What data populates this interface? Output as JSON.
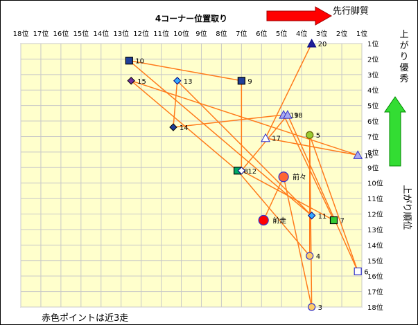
{
  "chart_data": {
    "type": "scatter",
    "title": "4コーナー位置取り",
    "annotations": {
      "pace_label": "先行脚質",
      "agari_label": "上がり優秀",
      "yaxis_label": "上がり順位",
      "footer": "赤色ポイントは近3走"
    },
    "x_axis": {
      "label": "4コーナー位置取り",
      "range": [
        18,
        1
      ],
      "ticks": [
        "18位",
        "17位",
        "16位",
        "15位",
        "14位",
        "13位",
        "12位",
        "11位",
        "10位",
        "9位",
        "8位",
        "7位",
        "6位",
        "5位",
        "4位",
        "3位",
        "2位",
        "1位"
      ]
    },
    "y_axis": {
      "label": "上がり順位",
      "range": [
        1,
        18
      ],
      "ticks": [
        "1位",
        "2位",
        "3位",
        "4位",
        "5位",
        "6位",
        "7位",
        "8位",
        "9位",
        "10位",
        "11位",
        "12位",
        "13位",
        "14位",
        "15位",
        "16位",
        "17位",
        "18位"
      ]
    },
    "grid": true,
    "points": [
      {
        "label": "20",
        "x": 3.5,
        "y": 1,
        "marker": "triangle",
        "fill": "#1f1f99",
        "stroke": "#000080"
      },
      {
        "label": "10",
        "x": 12.6,
        "y": 2.1,
        "marker": "square",
        "fill": "#1f3f99",
        "stroke": "#000000"
      },
      {
        "label": "15",
        "x": 12.5,
        "y": 3.4,
        "marker": "diamond",
        "fill": "#7030a0",
        "stroke": "#000000"
      },
      {
        "label": "13",
        "x": 10.2,
        "y": 3.4,
        "marker": "diamond",
        "fill": "#33aaff",
        "stroke": "#000080"
      },
      {
        "label": "9",
        "x": 7,
        "y": 3.4,
        "marker": "square",
        "fill": "#1f3f99",
        "stroke": "#000000"
      },
      {
        "label": "19",
        "x": 4.9,
        "y": 5.6,
        "marker": "triangle",
        "fill": "#aaaaee",
        "stroke": "#3333cc"
      },
      {
        "label": "18",
        "x": 4.7,
        "y": 5.6,
        "marker": "triangle",
        "fill": "#aaaaee",
        "stroke": "#3333cc"
      },
      {
        "label": "14",
        "x": 10.4,
        "y": 6.4,
        "marker": "diamond",
        "fill": "#1f3f99",
        "stroke": "#000000"
      },
      {
        "label": "5",
        "x": 3.6,
        "y": 6.9,
        "marker": "circle",
        "fill": "#99cc33",
        "stroke": "#666600"
      },
      {
        "label": "17",
        "x": 5.8,
        "y": 7.1,
        "marker": "triangle",
        "fill": "#ffffff",
        "stroke": "#3333cc"
      },
      {
        "label": "16",
        "x": 1.2,
        "y": 8.2,
        "marker": "triangle",
        "fill": "#aaaaee",
        "stroke": "#3333cc"
      },
      {
        "label": "8",
        "x": 7.2,
        "y": 9.2,
        "marker": "square",
        "fill": "#00aa66",
        "stroke": "#000000"
      },
      {
        "label": "12",
        "x": 7,
        "y": 9.2,
        "marker": "diamond",
        "fill": "#ffffff",
        "stroke": "#000080"
      },
      {
        "label": "前々",
        "x": 4.9,
        "y": 9.6,
        "marker": "circle",
        "fill": "#ff6633",
        "stroke": "#3333cc"
      },
      {
        "label": "11",
        "x": 3.5,
        "y": 12.1,
        "marker": "diamond",
        "fill": "#33aaff",
        "stroke": "#000080"
      },
      {
        "label": "7",
        "x": 2.4,
        "y": 12.4,
        "marker": "square",
        "fill": "#33cc33",
        "stroke": "#000000"
      },
      {
        "label": "前走",
        "x": 5.9,
        "y": 12.4,
        "marker": "circle",
        "fill": "#ff0000",
        "stroke": "#3333cc"
      },
      {
        "label": "4",
        "x": 3.6,
        "y": 14.7,
        "marker": "circle",
        "fill": "#ffcc66",
        "stroke": "#3333cc"
      },
      {
        "label": "6",
        "x": 1.2,
        "y": 15.7,
        "marker": "square",
        "fill": "#ffffff",
        "stroke": "#3333cc"
      },
      {
        "label": "3",
        "x": 3.5,
        "y": 18,
        "marker": "circle",
        "fill": "#ffcc66",
        "stroke": "#3333cc"
      }
    ],
    "connections": [
      [
        "20",
        "17"
      ],
      [
        "17",
        "16"
      ],
      [
        "16",
        "15"
      ],
      [
        "15",
        "8"
      ],
      [
        "8",
        "4"
      ],
      [
        "4",
        "5"
      ],
      [
        "5",
        "6"
      ],
      [
        "6",
        "18"
      ],
      [
        "18",
        "12"
      ],
      [
        "12",
        "9"
      ],
      [
        "9",
        "10"
      ],
      [
        "10",
        "11"
      ],
      [
        "11",
        "13"
      ],
      [
        "13",
        "14"
      ],
      [
        "14",
        "19"
      ],
      [
        "19",
        "7"
      ],
      [
        "7",
        "12"
      ],
      [
        "5",
        "3"
      ],
      [
        "3",
        "前々"
      ],
      [
        "前々",
        "前走"
      ]
    ],
    "line_color": "#ff7a1a",
    "plot_background": "#ffffcc",
    "grid_color": "#c8c8c8"
  }
}
